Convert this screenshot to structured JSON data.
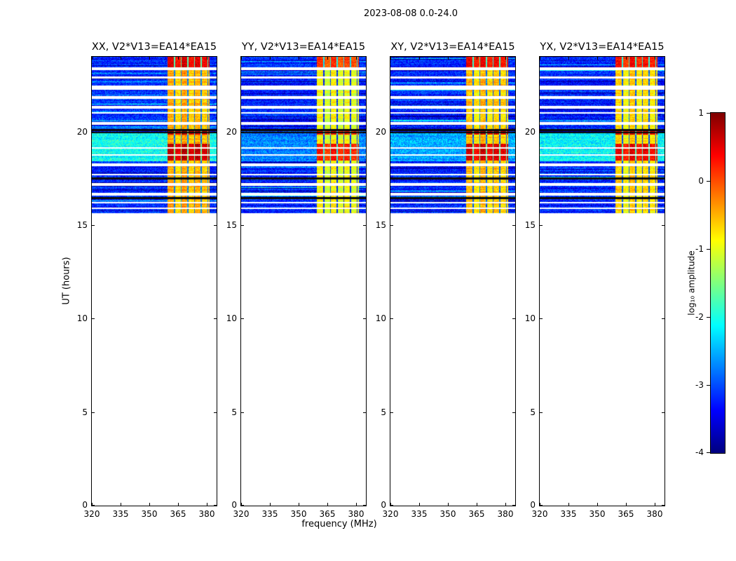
{
  "figure": {
    "title": "2023-08-08 0.0-24.0",
    "xlabel": "frequency (MHz)",
    "ylabel": "UT (hours)",
    "colorbar_label": "log₁₀ amplitude"
  },
  "chart_data": {
    "type": "heatmap",
    "title": "2023-08-08 0.0-24.0",
    "xlabel": "frequency (MHz)",
    "ylabel": "UT (hours)",
    "x_axis": {
      "min": 320,
      "max": 385,
      "ticks": [
        320,
        335,
        350,
        365,
        380
      ]
    },
    "y_axis": {
      "min": 0,
      "max": 24,
      "ticks": [
        0,
        5,
        10,
        15,
        20
      ]
    },
    "colorbar": {
      "label": "log₁₀ amplitude",
      "min": -4,
      "max": 1,
      "ticks": [
        1,
        0,
        -1,
        -2,
        -3,
        -4
      ],
      "colormap": "jet"
    },
    "panels": [
      {
        "title": "XX, V2*V13=EA14*EA15",
        "light_region_level": -2.05,
        "band_offset": 0.15
      },
      {
        "title": "YY, V2*V13=EA14*EA15",
        "light_region_level": -2.75,
        "band_offset": -0.25
      },
      {
        "title": "XY, V2*V13=EA14*EA15",
        "light_region_level": -2.55,
        "band_offset": 0.05
      },
      {
        "title": "YX, V2*V13=EA14*EA15",
        "light_region_level": -2.15,
        "band_offset": -0.05
      }
    ],
    "data_time_range": [
      15.62,
      24.0
    ],
    "background_log_amplitude": -3.2,
    "light_region": {
      "t0": 18.4,
      "t1": 19.9
    },
    "bright_band": {
      "freq_min": 359.5,
      "freq_max": 381.5,
      "base": -0.85
    },
    "band_dark_lines": [
      363,
      366.5,
      370,
      373.5,
      377,
      380.5
    ],
    "band_subband_offsets": [
      0.25,
      0.0,
      0.3,
      0.05,
      0.2,
      0.1,
      0.15
    ],
    "band_events": [
      {
        "t0": 23.3,
        "t1": 24.0,
        "amp": 0.15
      },
      {
        "t0": 19.85,
        "t1": 20.15,
        "amp": 0.35
      },
      {
        "t0": 18.45,
        "t1": 19.35,
        "amp": 0.3
      }
    ],
    "white_gap_times": [
      {
        "t": 23.36,
        "hw": 0.06
      },
      {
        "t": 22.88,
        "hw": 0.06
      },
      {
        "t": 22.35,
        "hw": 0.1
      },
      {
        "t": 21.83,
        "hw": 0.07
      },
      {
        "t": 21.3,
        "hw": 0.06
      },
      {
        "t": 21.0,
        "hw": 0.05
      },
      {
        "t": 20.44,
        "hw": 0.06
      },
      {
        "t": 19.13,
        "hw": 0.05
      },
      {
        "t": 18.75,
        "hw": 0.04
      },
      {
        "t": 18.23,
        "hw": 0.08
      },
      {
        "t": 17.7,
        "hw": 0.05
      },
      {
        "t": 17.18,
        "hw": 0.08
      },
      {
        "t": 16.65,
        "hw": 0.06
      },
      {
        "t": 16.2,
        "hw": 0.05
      },
      {
        "t": 15.9,
        "hw": 0.04
      }
    ],
    "black_line_times": [
      20.08,
      19.94,
      17.5,
      16.45
    ]
  }
}
